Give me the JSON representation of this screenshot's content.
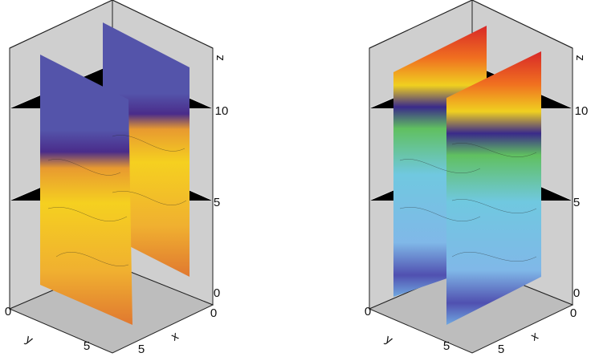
{
  "panels": [
    {
      "z_label": "z",
      "z_ticks": [
        "0",
        "5",
        "10"
      ],
      "x_label": "x",
      "x_ticks": [
        "0",
        "5"
      ],
      "y_label": "y",
      "y_ticks": [
        "0",
        "5"
      ]
    },
    {
      "z_label": "z",
      "z_ticks": [
        "0",
        "5",
        "10"
      ],
      "x_label": "x",
      "x_ticks": [
        "0",
        "5"
      ],
      "y_label": "y",
      "y_ticks": [
        "0",
        "5"
      ]
    }
  ]
}
